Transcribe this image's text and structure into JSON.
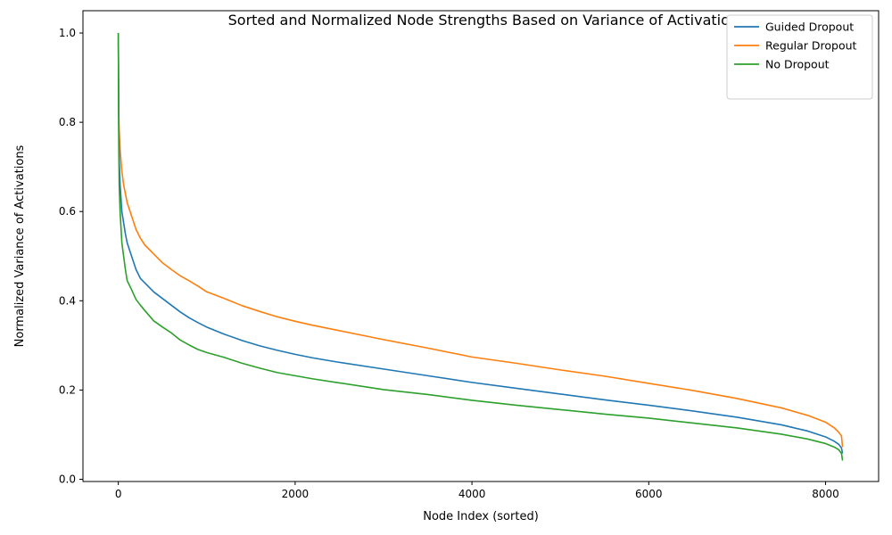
{
  "chart_data": {
    "type": "line",
    "title": "Sorted and Normalized Node Strengths Based on Variance of Activations",
    "xlabel": "Node Index (sorted)",
    "ylabel": "Normalized Variance of Activations",
    "xlim": [
      -400,
      8600
    ],
    "ylim": [
      -0.005,
      1.05
    ],
    "xticks": [
      0,
      2000,
      4000,
      6000,
      8000
    ],
    "xtick_labels": [
      "0",
      "2000",
      "4000",
      "6000",
      "8000"
    ],
    "yticks": [
      0.0,
      0.2,
      0.4,
      0.6,
      0.8,
      1.0
    ],
    "ytick_labels": [
      "0.0",
      "0.2",
      "0.4",
      "0.6",
      "0.8",
      "1.0"
    ],
    "grid": false,
    "legend_position": "top-right",
    "series": [
      {
        "name": "Guided Dropout",
        "color": "#1f77b4",
        "x": [
          0,
          5,
          10,
          20,
          40,
          60,
          80,
          100,
          150,
          200,
          250,
          300,
          400,
          500,
          600,
          700,
          800,
          900,
          1000,
          1200,
          1400,
          1600,
          1800,
          2000,
          2200,
          2500,
          3000,
          3500,
          4000,
          4500,
          5000,
          5500,
          6000,
          6500,
          7000,
          7500,
          7800,
          8000,
          8100,
          8150,
          8180,
          8192
        ],
        "y": [
          1.0,
          0.8,
          0.72,
          0.66,
          0.6,
          0.575,
          0.55,
          0.53,
          0.5,
          0.47,
          0.45,
          0.44,
          0.42,
          0.405,
          0.39,
          0.375,
          0.362,
          0.351,
          0.341,
          0.325,
          0.311,
          0.299,
          0.289,
          0.28,
          0.272,
          0.262,
          0.247,
          0.232,
          0.217,
          0.204,
          0.191,
          0.178,
          0.166,
          0.153,
          0.139,
          0.122,
          0.108,
          0.095,
          0.085,
          0.078,
          0.07,
          0.058
        ]
      },
      {
        "name": "Regular Dropout",
        "color": "#ff7f0e",
        "x": [
          0,
          5,
          10,
          20,
          40,
          60,
          80,
          100,
          150,
          200,
          250,
          300,
          400,
          500,
          600,
          700,
          800,
          900,
          1000,
          1200,
          1400,
          1600,
          1800,
          2000,
          2200,
          2500,
          3000,
          3500,
          4000,
          4500,
          5000,
          5500,
          6000,
          6500,
          7000,
          7500,
          7800,
          8000,
          8100,
          8150,
          8180,
          8192
        ],
        "y": [
          0.98,
          0.82,
          0.78,
          0.74,
          0.69,
          0.66,
          0.64,
          0.62,
          0.59,
          0.56,
          0.54,
          0.525,
          0.505,
          0.485,
          0.47,
          0.456,
          0.445,
          0.433,
          0.42,
          0.405,
          0.389,
          0.376,
          0.364,
          0.354,
          0.345,
          0.333,
          0.313,
          0.294,
          0.274,
          0.26,
          0.245,
          0.231,
          0.215,
          0.199,
          0.181,
          0.16,
          0.143,
          0.128,
          0.115,
          0.105,
          0.097,
          0.072
        ]
      },
      {
        "name": "No Dropout",
        "color": "#2ca02c",
        "x": [
          0,
          5,
          10,
          20,
          40,
          60,
          80,
          100,
          150,
          200,
          250,
          300,
          400,
          500,
          600,
          700,
          800,
          900,
          1000,
          1200,
          1400,
          1600,
          1800,
          2000,
          2200,
          2500,
          3000,
          3500,
          4000,
          4500,
          5000,
          5500,
          6000,
          6500,
          7000,
          7500,
          7800,
          8000,
          8100,
          8150,
          8180,
          8192
        ],
        "y": [
          1.0,
          0.75,
          0.66,
          0.6,
          0.53,
          0.5,
          0.47,
          0.445,
          0.425,
          0.403,
          0.39,
          0.378,
          0.355,
          0.341,
          0.328,
          0.312,
          0.301,
          0.291,
          0.284,
          0.273,
          0.26,
          0.249,
          0.239,
          0.232,
          0.225,
          0.216,
          0.201,
          0.19,
          0.177,
          0.166,
          0.156,
          0.146,
          0.137,
          0.126,
          0.115,
          0.101,
          0.09,
          0.08,
          0.072,
          0.066,
          0.058,
          0.042
        ]
      }
    ]
  }
}
